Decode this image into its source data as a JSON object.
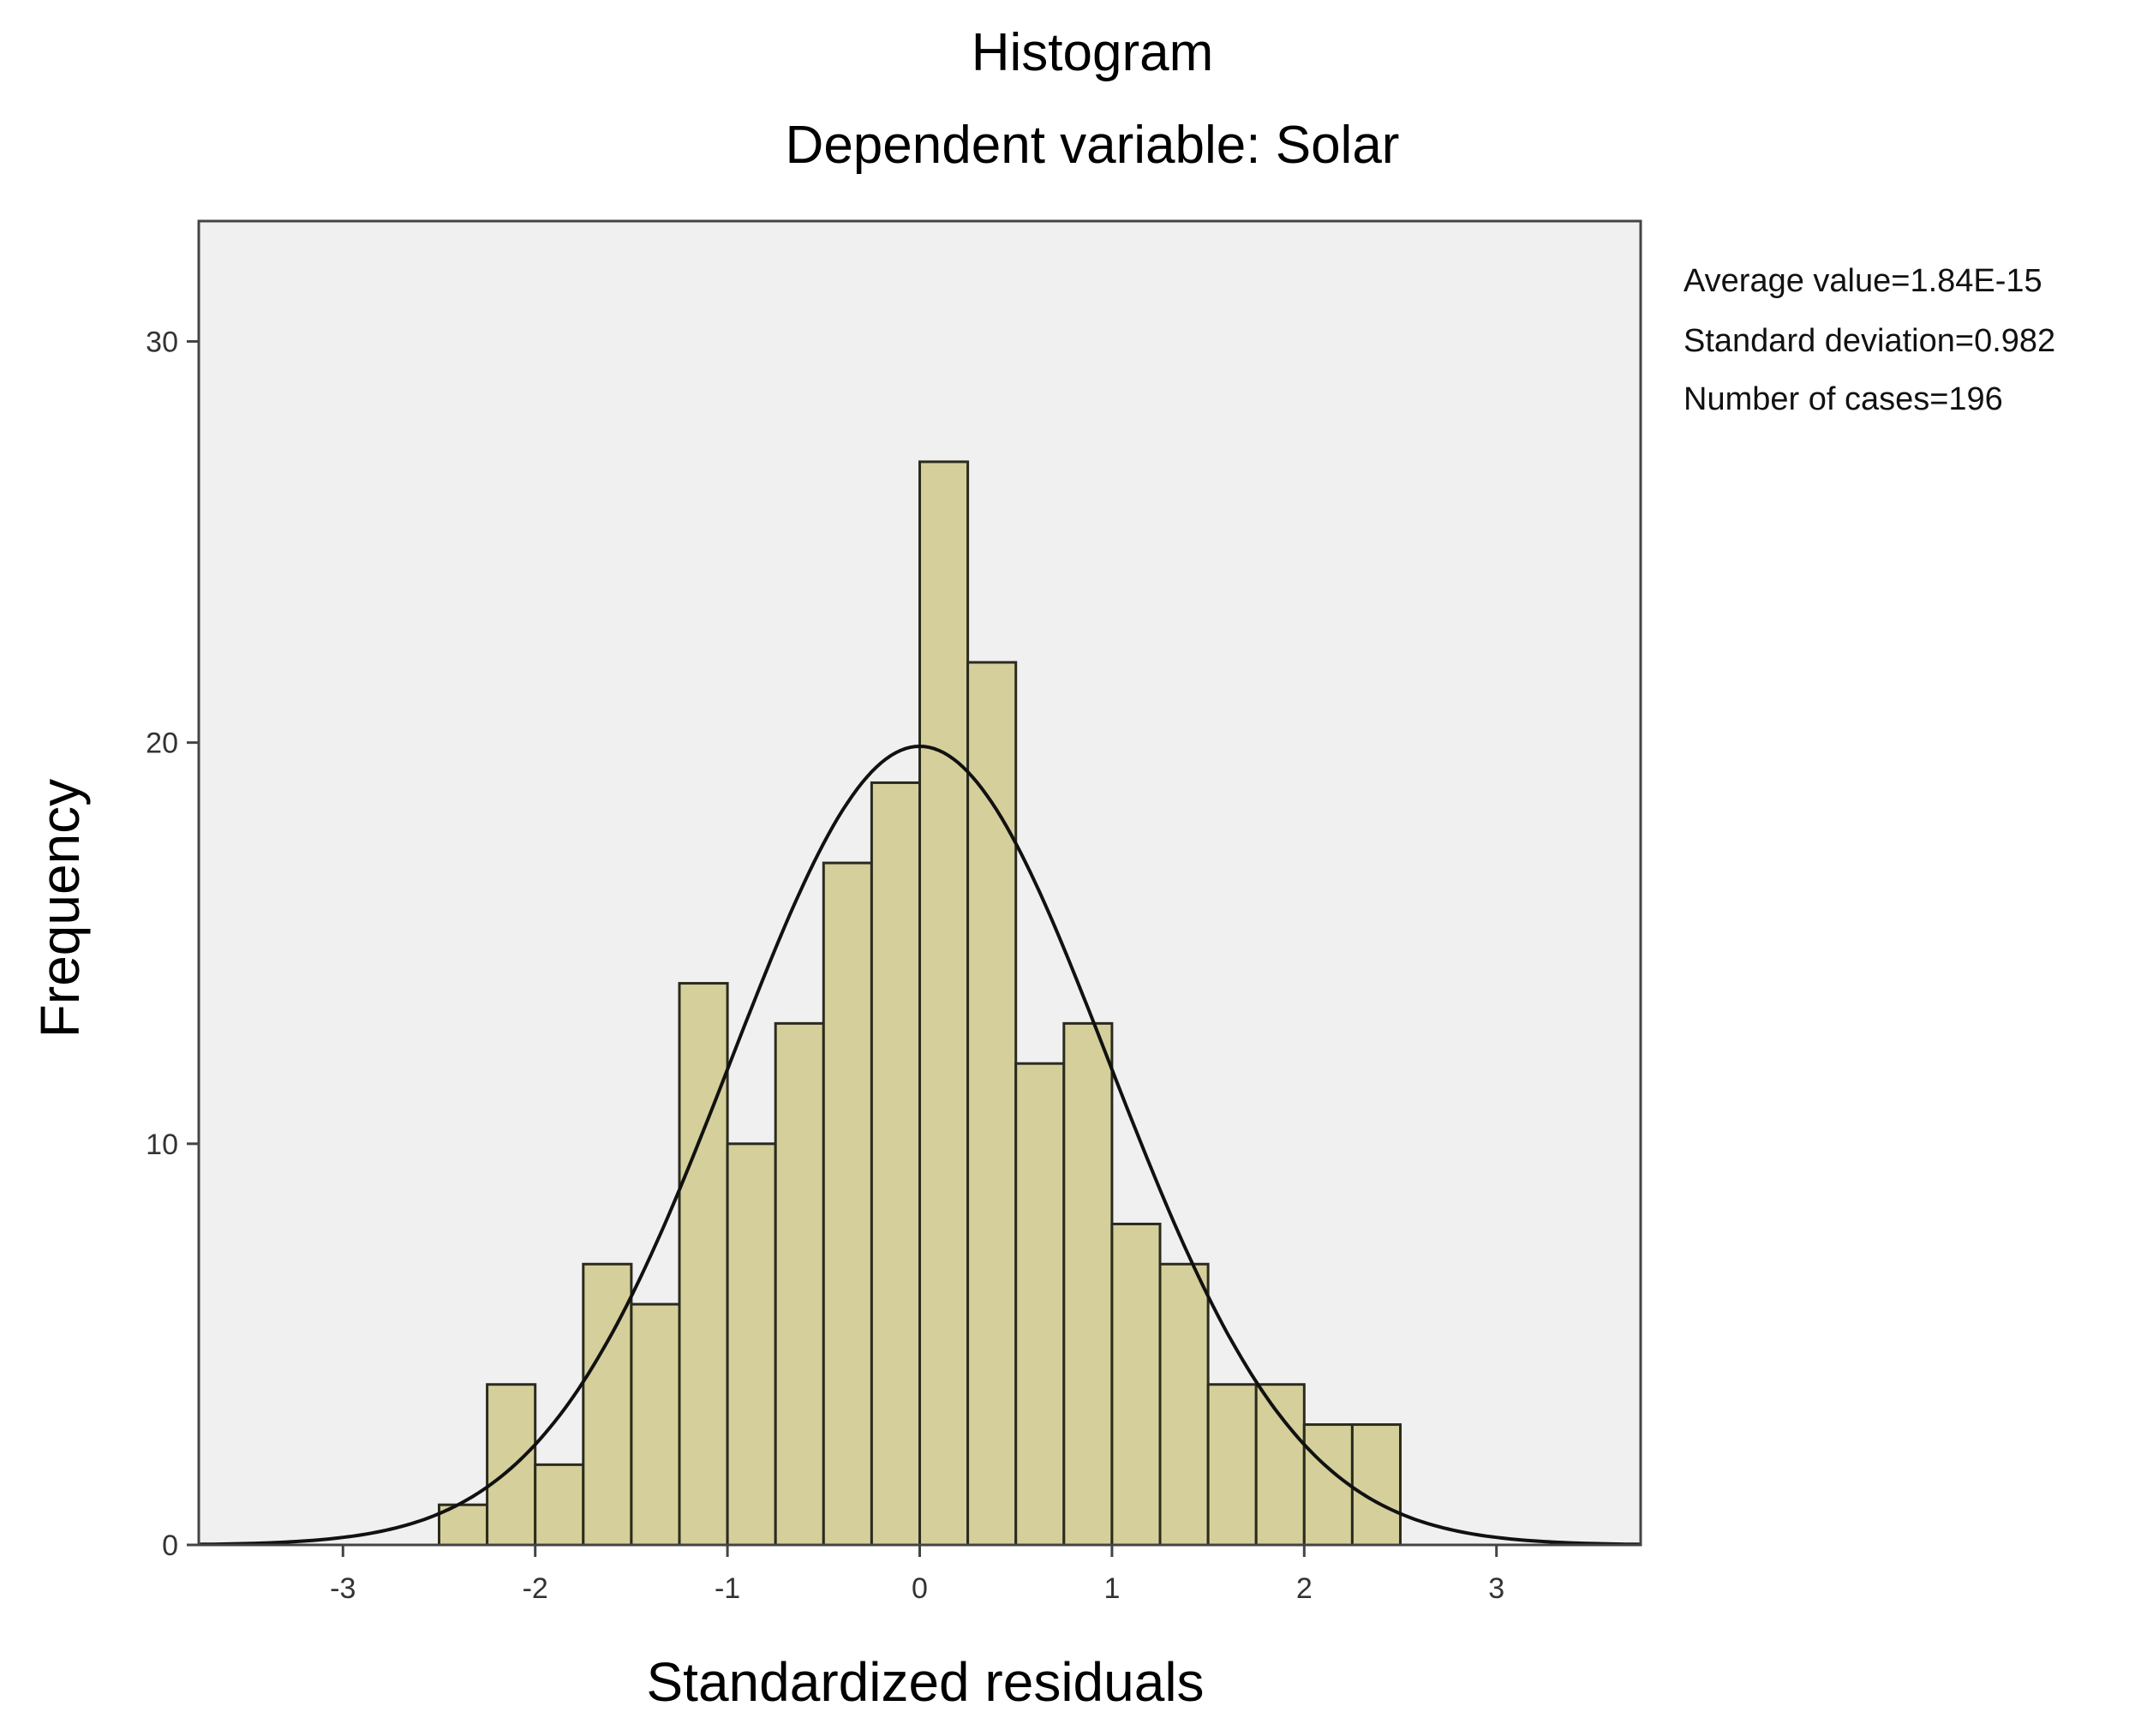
{
  "chart_data": {
    "type": "bar",
    "title": "Histogram",
    "subtitle": "Dependent variable: Solar",
    "xlabel": "Standardized residuals",
    "ylabel": "Frequency",
    "xlim": [
      -3.75,
      3.75
    ],
    "ylim": [
      0,
      33
    ],
    "x_ticks": [
      "-3",
      "-2",
      "-1",
      "0",
      "1",
      "2",
      "3"
    ],
    "y_ticks": [
      "0",
      "10",
      "20",
      "30"
    ],
    "bin_width": 0.25,
    "bins": [
      {
        "start": -2.5,
        "end": -2.25,
        "value": 1
      },
      {
        "start": -2.25,
        "end": -2.0,
        "value": 4
      },
      {
        "start": -2.0,
        "end": -1.75,
        "value": 2
      },
      {
        "start": -1.75,
        "end": -1.5,
        "value": 7
      },
      {
        "start": -1.5,
        "end": -1.25,
        "value": 6
      },
      {
        "start": -1.25,
        "end": -1.0,
        "value": 14
      },
      {
        "start": -1.0,
        "end": -0.75,
        "value": 10
      },
      {
        "start": -0.75,
        "end": -0.5,
        "value": 13
      },
      {
        "start": -0.5,
        "end": -0.25,
        "value": 17
      },
      {
        "start": -0.25,
        "end": 0.0,
        "value": 19
      },
      {
        "start": 0.0,
        "end": 0.25,
        "value": 27
      },
      {
        "start": 0.25,
        "end": 0.5,
        "value": 22
      },
      {
        "start": 0.5,
        "end": 0.75,
        "value": 12
      },
      {
        "start": 0.75,
        "end": 1.0,
        "value": 13
      },
      {
        "start": 1.0,
        "end": 1.25,
        "value": 8
      },
      {
        "start": 1.25,
        "end": 1.5,
        "value": 7
      },
      {
        "start": 1.5,
        "end": 1.75,
        "value": 4
      },
      {
        "start": 1.75,
        "end": 2.0,
        "value": 4
      },
      {
        "start": 2.0,
        "end": 2.25,
        "value": 3
      },
      {
        "start": 2.25,
        "end": 2.5,
        "value": 3
      }
    ],
    "normal_curve": {
      "mean": 0.0,
      "sd": 0.982,
      "n": 196
    },
    "stats": [
      "Average value=1.84E-15",
      "Standard deviation=0.982",
      "Number of cases=196"
    ],
    "grid": false,
    "colors": {
      "bar_fill": "#d5cf9b",
      "bar_stroke": "#2b2b1e",
      "plot_bg": "#f0f0f0",
      "curve": "#111111",
      "axis": "#444444"
    }
  }
}
